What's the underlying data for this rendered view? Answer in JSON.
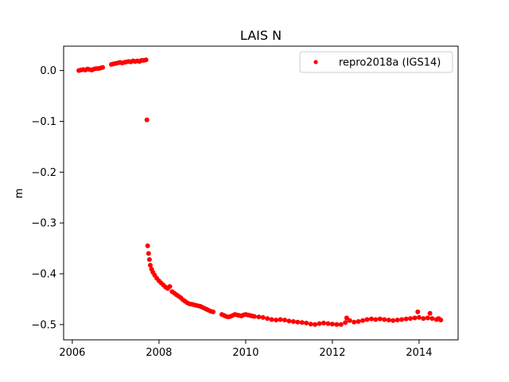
{
  "chart_data": {
    "type": "scatter",
    "title": "LAIS N",
    "xlabel": "",
    "ylabel": "m",
    "xlim": [
      2005.8,
      2014.9
    ],
    "ylim": [
      -0.53,
      0.048
    ],
    "xticks": [
      2006,
      2008,
      2010,
      2012,
      2014
    ],
    "xtick_labels": [
      "2006",
      "2008",
      "2010",
      "2012",
      "2014"
    ],
    "yticks": [
      0.0,
      -0.1,
      -0.2,
      -0.3,
      -0.4,
      -0.5
    ],
    "ytick_labels": [
      "0.0",
      "−0.1",
      "−0.2",
      "−0.3",
      "−0.4",
      "−0.5"
    ],
    "grid": false,
    "legend_position": "top-right",
    "series": [
      {
        "name": "repro2018a (IGS14)",
        "color": "#ff0000",
        "marker": "circle",
        "points": [
          [
            2006.15,
            0.0
          ],
          [
            2006.2,
            0.001
          ],
          [
            2006.25,
            0.002
          ],
          [
            2006.3,
            0.001
          ],
          [
            2006.35,
            0.003
          ],
          [
            2006.4,
            0.002
          ],
          [
            2006.45,
            0.001
          ],
          [
            2006.5,
            0.003
          ],
          [
            2006.55,
            0.004
          ],
          [
            2006.6,
            0.004
          ],
          [
            2006.65,
            0.005
          ],
          [
            2006.7,
            0.006
          ],
          [
            2006.9,
            0.012
          ],
          [
            2006.95,
            0.013
          ],
          [
            2007.0,
            0.014
          ],
          [
            2007.05,
            0.015
          ],
          [
            2007.1,
            0.016
          ],
          [
            2007.15,
            0.015
          ],
          [
            2007.2,
            0.016
          ],
          [
            2007.25,
            0.017
          ],
          [
            2007.3,
            0.018
          ],
          [
            2007.35,
            0.017
          ],
          [
            2007.4,
            0.019
          ],
          [
            2007.45,
            0.018
          ],
          [
            2007.5,
            0.019
          ],
          [
            2007.55,
            0.018
          ],
          [
            2007.6,
            0.02
          ],
          [
            2007.65,
            0.02
          ],
          [
            2007.7,
            0.021
          ],
          [
            2007.72,
            -0.097
          ],
          [
            2007.74,
            -0.345
          ],
          [
            2007.76,
            -0.36
          ],
          [
            2007.78,
            -0.372
          ],
          [
            2007.8,
            -0.383
          ],
          [
            2007.83,
            -0.391
          ],
          [
            2007.86,
            -0.397
          ],
          [
            2007.9,
            -0.403
          ],
          [
            2007.95,
            -0.409
          ],
          [
            2008.0,
            -0.414
          ],
          [
            2008.05,
            -0.418
          ],
          [
            2008.1,
            -0.422
          ],
          [
            2008.15,
            -0.426
          ],
          [
            2008.2,
            -0.429
          ],
          [
            2008.25,
            -0.425
          ],
          [
            2008.3,
            -0.435
          ],
          [
            2008.35,
            -0.438
          ],
          [
            2008.4,
            -0.441
          ],
          [
            2008.45,
            -0.444
          ],
          [
            2008.5,
            -0.447
          ],
          [
            2008.55,
            -0.451
          ],
          [
            2008.6,
            -0.454
          ],
          [
            2008.65,
            -0.457
          ],
          [
            2008.7,
            -0.459
          ],
          [
            2008.75,
            -0.46
          ],
          [
            2008.8,
            -0.461
          ],
          [
            2008.85,
            -0.462
          ],
          [
            2008.9,
            -0.463
          ],
          [
            2008.95,
            -0.464
          ],
          [
            2009.0,
            -0.466
          ],
          [
            2009.05,
            -0.468
          ],
          [
            2009.1,
            -0.47
          ],
          [
            2009.15,
            -0.472
          ],
          [
            2009.2,
            -0.474
          ],
          [
            2009.25,
            -0.475
          ],
          [
            2009.45,
            -0.48
          ],
          [
            2009.5,
            -0.482
          ],
          [
            2009.55,
            -0.484
          ],
          [
            2009.6,
            -0.485
          ],
          [
            2009.65,
            -0.484
          ],
          [
            2009.7,
            -0.482
          ],
          [
            2009.75,
            -0.48
          ],
          [
            2009.8,
            -0.481
          ],
          [
            2009.85,
            -0.482
          ],
          [
            2009.9,
            -0.483
          ],
          [
            2009.95,
            -0.481
          ],
          [
            2010.0,
            -0.48
          ],
          [
            2010.05,
            -0.481
          ],
          [
            2010.1,
            -0.482
          ],
          [
            2010.15,
            -0.483
          ],
          [
            2010.2,
            -0.484
          ],
          [
            2010.3,
            -0.485
          ],
          [
            2010.4,
            -0.486
          ],
          [
            2010.5,
            -0.488
          ],
          [
            2010.6,
            -0.49
          ],
          [
            2010.7,
            -0.491
          ],
          [
            2010.8,
            -0.49
          ],
          [
            2010.9,
            -0.491
          ],
          [
            2011.0,
            -0.493
          ],
          [
            2011.1,
            -0.494
          ],
          [
            2011.2,
            -0.495
          ],
          [
            2011.3,
            -0.496
          ],
          [
            2011.4,
            -0.497
          ],
          [
            2011.5,
            -0.499
          ],
          [
            2011.6,
            -0.5
          ],
          [
            2011.7,
            -0.498
          ],
          [
            2011.8,
            -0.497
          ],
          [
            2011.9,
            -0.498
          ],
          [
            2012.0,
            -0.499
          ],
          [
            2012.1,
            -0.5
          ],
          [
            2012.2,
            -0.5
          ],
          [
            2012.3,
            -0.496
          ],
          [
            2012.33,
            -0.487
          ],
          [
            2012.4,
            -0.492
          ],
          [
            2012.5,
            -0.495
          ],
          [
            2012.6,
            -0.494
          ],
          [
            2012.7,
            -0.492
          ],
          [
            2012.8,
            -0.49
          ],
          [
            2012.9,
            -0.489
          ],
          [
            2013.0,
            -0.49
          ],
          [
            2013.1,
            -0.489
          ],
          [
            2013.2,
            -0.49
          ],
          [
            2013.3,
            -0.491
          ],
          [
            2013.4,
            -0.492
          ],
          [
            2013.5,
            -0.491
          ],
          [
            2013.6,
            -0.49
          ],
          [
            2013.7,
            -0.489
          ],
          [
            2013.8,
            -0.488
          ],
          [
            2013.9,
            -0.487
          ],
          [
            2013.97,
            -0.475
          ],
          [
            2014.0,
            -0.486
          ],
          [
            2014.1,
            -0.488
          ],
          [
            2014.2,
            -0.487
          ],
          [
            2014.25,
            -0.478
          ],
          [
            2014.3,
            -0.488
          ],
          [
            2014.4,
            -0.49
          ],
          [
            2014.45,
            -0.488
          ],
          [
            2014.5,
            -0.491
          ]
        ]
      }
    ]
  }
}
